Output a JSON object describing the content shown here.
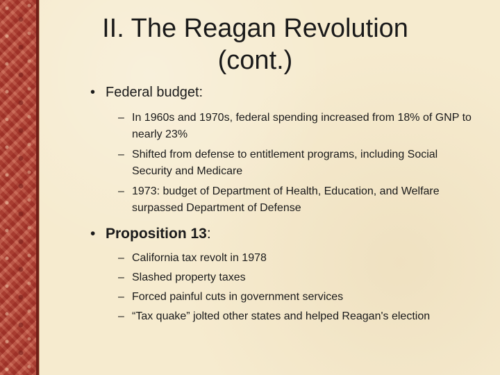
{
  "slide": {
    "title_line1": "II. The Reagan Revolution",
    "title_line2": "(cont.)",
    "bullets": [
      {
        "marker": "•",
        "label": "Federal budget:",
        "subitems": [
          {
            "marker": "–",
            "text": "In 1960s and 1970s, federal spending increased from 18% of GNP to nearly 23%"
          },
          {
            "marker": "–",
            "text": "Shifted from defense to entitlement programs, including Social Security and Medicare"
          },
          {
            "marker": "–",
            "text": "1973:  budget of Department of Health, Education, and Welfare surpassed Department of Defense"
          }
        ]
      },
      {
        "marker": "•",
        "label_bold": "Proposition 13",
        "label_suffix": ":",
        "subitems": [
          {
            "marker": "–",
            "text": "California tax revolt in 1978"
          },
          {
            "marker": "–",
            "text": "Slashed property taxes"
          },
          {
            "marker": "–",
            "text": "Forced painful cuts in government services"
          },
          {
            "marker": "–",
            "text": "“Tax quake” jolted other states and helped Reagan's election"
          }
        ]
      }
    ]
  },
  "colors": {
    "background": "#f6ebcf",
    "border_strip": "#b6493c",
    "text": "#1a1a1a"
  }
}
